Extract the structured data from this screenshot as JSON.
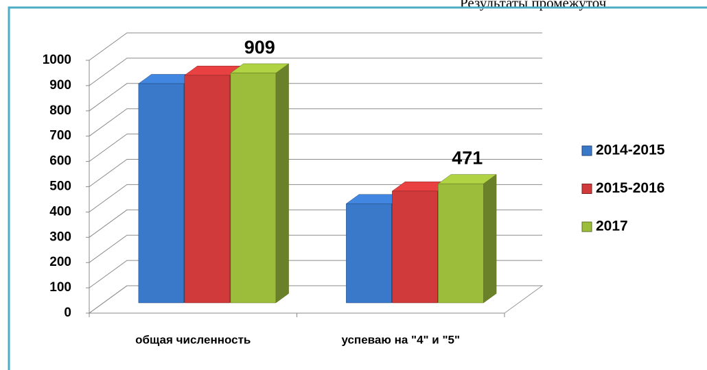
{
  "header": {
    "text": "Результаты промежуточ"
  },
  "chart_data": {
    "type": "bar3d",
    "categories": [
      "общая численность",
      "успеваю на \"4\" и \"5\""
    ],
    "series": [
      {
        "name": "2014-2015",
        "color": "#3a78c9",
        "values": [
          867,
          392
        ]
      },
      {
        "name": "2015-2016",
        "color": "#d03a3a",
        "values": [
          900,
          442
        ]
      },
      {
        "name": "2017",
        "color": "#9cbc3c",
        "values": [
          909,
          471
        ],
        "show_labels": true
      }
    ],
    "ylim": [
      0,
      1000
    ],
    "yticks": [
      0,
      100,
      200,
      300,
      400,
      500,
      600,
      700,
      800,
      900,
      1000
    ],
    "grid": true,
    "legend": "right"
  }
}
